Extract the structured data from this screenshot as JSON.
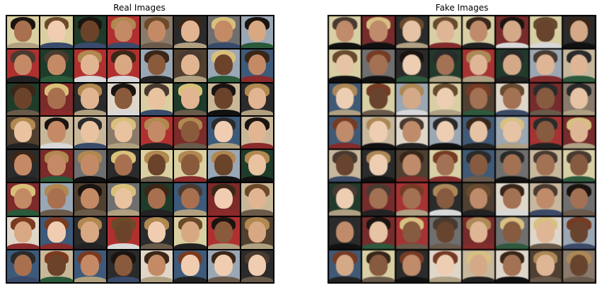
{
  "panels": [
    {
      "title": "Real Images"
    },
    {
      "title": "Fake Images"
    }
  ],
  "grid": {
    "rows": 8,
    "cols": 8
  }
}
